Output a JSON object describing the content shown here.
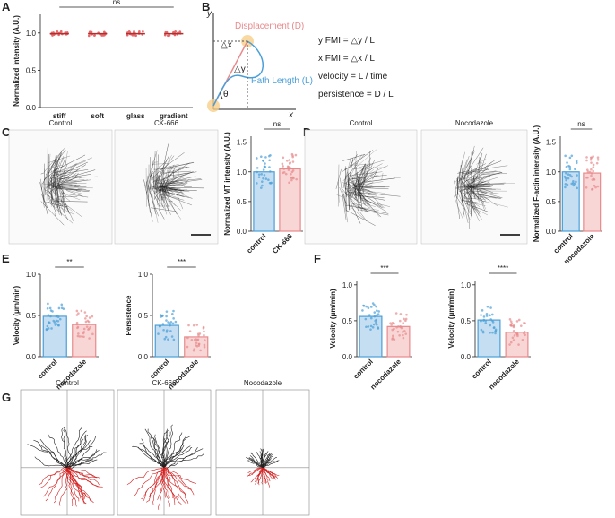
{
  "panel_labels": [
    "A",
    "B",
    "C",
    "D",
    "E",
    "F",
    "G"
  ],
  "diagram": {
    "y_axis": "y",
    "x_axis": "x",
    "displacement": "Displacement (D)",
    "path_length": "Path Length (L)",
    "dx": "△x",
    "dy": "△y",
    "theta": "θ",
    "formulas": [
      "y FMI = △y / L",
      "x FMI = △x / L",
      "velocity = L / time",
      "persistence = D / L"
    ]
  },
  "images": {
    "c": [
      "Control",
      "CK-666"
    ],
    "d": [
      "Control",
      "Nocodazole"
    ],
    "g": [
      "Control",
      "CK-666",
      "Nocodazole"
    ]
  },
  "chart_data": [
    {
      "type": "dot",
      "ylabel": "Normalized intensity (A.U.)",
      "categories": [
        "stiff",
        "soft",
        "glass",
        "gradient"
      ],
      "values": [
        0.99,
        0.99,
        0.99,
        0.99
      ],
      "colors": [
        "#e8686b"
      ],
      "ylim": [
        0,
        1.25
      ],
      "yticks": [
        {
          "value": 0,
          "label": "0.0"
        },
        {
          "value": 0.5,
          "label": "0.5"
        },
        {
          "value": 1,
          "label": "1.0"
        }
      ],
      "annotation": "ns"
    },
    {
      "type": "bar",
      "ylabel": "Normalized MT intensity (A.U.)",
      "categories": [
        "control",
        "CK-666"
      ],
      "values": [
        1.0,
        1.05
      ],
      "colors": [
        "#c5def2",
        "#f8d6d6"
      ],
      "edge_colors": [
        "#4a9fd8",
        "#e88a8c"
      ],
      "ylim": [
        0,
        1.6
      ],
      "yticks": [
        {
          "value": 0,
          "label": "0.0"
        },
        {
          "value": 0.5,
          "label": "0.5"
        },
        {
          "value": 1,
          "label": "1.0"
        },
        {
          "value": 1.5,
          "label": "1.5"
        }
      ],
      "annotation": "ns"
    },
    {
      "type": "bar",
      "ylabel": "Normalized F-actin intensity (A.U.)",
      "categories": [
        "control",
        "nocodazole"
      ],
      "values": [
        1.0,
        0.98
      ],
      "colors": [
        "#c5def2",
        "#f8d6d6"
      ],
      "edge_colors": [
        "#4a9fd8",
        "#e88a8c"
      ],
      "ylim": [
        0,
        1.6
      ],
      "yticks": [
        {
          "value": 0,
          "label": "0.0"
        },
        {
          "value": 0.5,
          "label": "0.5"
        },
        {
          "value": 1,
          "label": "1.0"
        },
        {
          "value": 1.5,
          "label": "1.5"
        }
      ],
      "annotation": "ns"
    },
    {
      "type": "bar",
      "ylabel": "Velocity (μm/min)",
      "categories": [
        "control",
        "nocodazole"
      ],
      "values": [
        0.49,
        0.39
      ],
      "colors": [
        "#c5def2",
        "#f8d6d6"
      ],
      "edge_colors": [
        "#4a9fd8",
        "#e88a8c"
      ],
      "ylim": [
        0,
        1.0
      ],
      "yticks": [
        {
          "value": 0,
          "label": "0.0"
        },
        {
          "value": 0.5,
          "label": "0.5"
        },
        {
          "value": 1,
          "label": "1.0"
        }
      ],
      "annotation": "**"
    },
    {
      "type": "bar",
      "ylabel": "Persistence",
      "categories": [
        "control",
        "nocodazole"
      ],
      "values": [
        0.38,
        0.24
      ],
      "colors": [
        "#c5def2",
        "#f8d6d6"
      ],
      "edge_colors": [
        "#4a9fd8",
        "#e88a8c"
      ],
      "ylim": [
        0,
        1.0
      ],
      "yticks": [
        {
          "value": 0,
          "label": "0.0"
        },
        {
          "value": 0.5,
          "label": "0.5"
        },
        {
          "value": 1,
          "label": "1.0"
        }
      ],
      "annotation": "***"
    },
    {
      "type": "bar",
      "ylabel": "Velocity (μm/min)",
      "categories": [
        "control",
        "nocodazole"
      ],
      "values": [
        0.56,
        0.42
      ],
      "colors": [
        "#c5def2",
        "#f8d6d6"
      ],
      "edge_colors": [
        "#4a9fd8",
        "#e88a8c"
      ],
      "ylim": [
        0,
        1.06
      ],
      "yticks": [
        {
          "value": 0,
          "label": "0.0"
        },
        {
          "value": 0.5,
          "label": "0.5"
        },
        {
          "value": 1,
          "label": "1.0"
        }
      ],
      "annotation": "***"
    },
    {
      "type": "bar",
      "ylabel": "Velocity (μm/min)",
      "categories": [
        "control",
        "nocodazole"
      ],
      "values": [
        0.51,
        0.34
      ],
      "colors": [
        "#c5def2",
        "#f8d6d6"
      ],
      "edge_colors": [
        "#4a9fd8",
        "#e88a8c"
      ],
      "ylim": [
        0,
        1.06
      ],
      "yticks": [
        {
          "value": 0,
          "label": "0.0"
        },
        {
          "value": 0.5,
          "label": "0.5"
        },
        {
          "value": 1,
          "label": "1.0"
        }
      ],
      "annotation": "****"
    }
  ]
}
